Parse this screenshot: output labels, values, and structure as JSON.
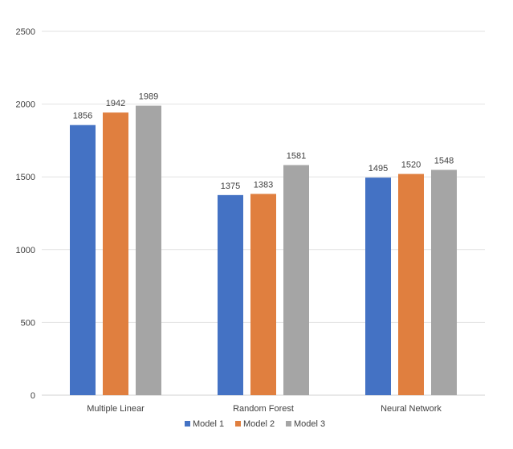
{
  "chart_data": {
    "type": "bar",
    "title": "",
    "xlabel": "",
    "ylabel": "",
    "categories": [
      "Multiple Linear",
      "Random Forest",
      "Neural Network"
    ],
    "series": [
      {
        "name": "Model 1",
        "values": [
          1856,
          1375,
          1495
        ],
        "color": "#4472c4"
      },
      {
        "name": "Model 2",
        "values": [
          1942,
          1383,
          1520
        ],
        "color": "#e07f3f"
      },
      {
        "name": "Model 3",
        "values": [
          1989,
          1581,
          1548
        ],
        "color": "#a5a5a5"
      }
    ],
    "ylim": [
      0,
      2500
    ],
    "yticks": [
      "0",
      "500",
      "1000",
      "1500",
      "2000",
      "2500"
    ],
    "grid": true,
    "legend_position": "bottom",
    "data_labels": true
  }
}
